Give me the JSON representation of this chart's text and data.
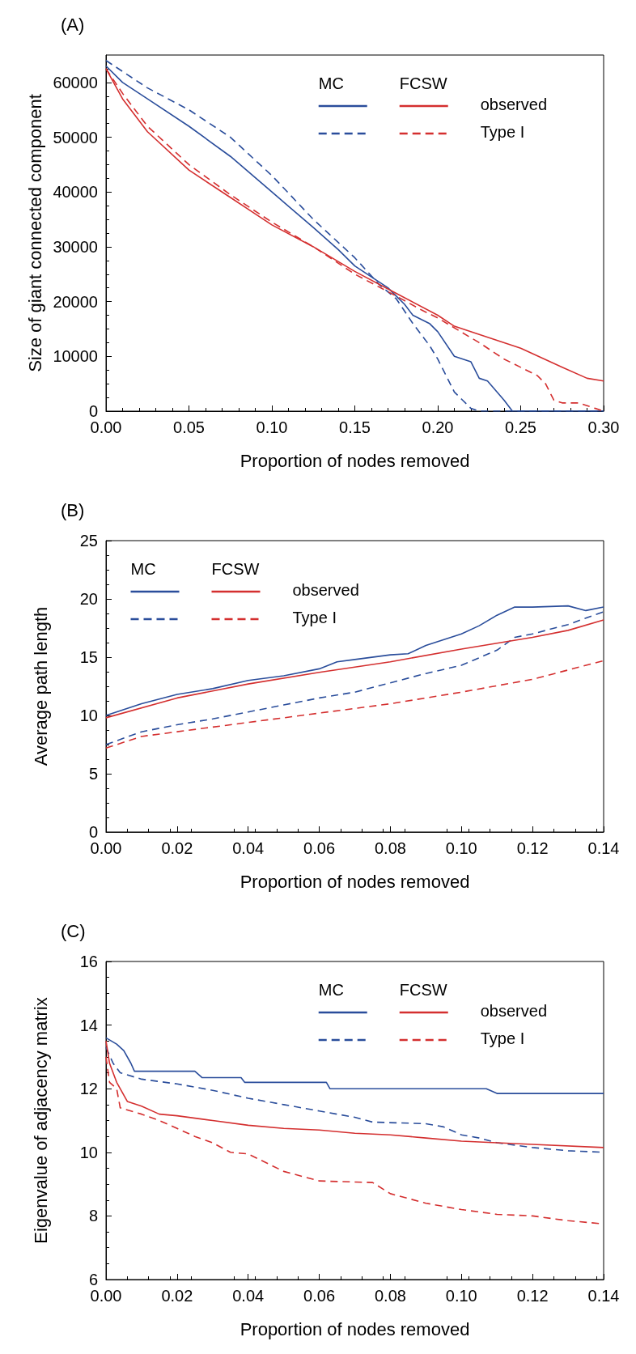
{
  "chart_data": [
    {
      "type": "line",
      "title": "(A)",
      "xlabel": "Proportion of nodes removed",
      "ylabel": "Size of giant connected component",
      "annotations": [
        "MC",
        "FCSW"
      ],
      "legend": "top right",
      "grid": false,
      "marker": "none",
      "xlim": [
        0,
        0.3
      ],
      "xticks": [
        {
          "value": 0,
          "label": "0.00"
        },
        {
          "value": 0.05,
          "label": "0.05"
        },
        {
          "value": 0.1,
          "label": "0.10"
        },
        {
          "value": 0.15,
          "label": "0.15"
        },
        {
          "value": 0.2,
          "label": "0.20"
        },
        {
          "value": 0.25,
          "label": "0.25"
        },
        {
          "value": 0.3,
          "label": "0.30"
        }
      ],
      "ylim": [
        0,
        65000
      ],
      "yticks": [
        0,
        10000,
        20000,
        30000,
        40000,
        50000,
        60000
      ],
      "series": [
        {
          "color": "#2a4d9b",
          "line_style": "solid",
          "x": [
            0,
            0.01,
            0.025,
            0.05,
            0.075,
            0.1,
            0.125,
            0.14,
            0.15,
            0.16,
            0.17,
            0.175,
            0.18,
            0.185,
            0.195,
            0.2,
            0.21,
            0.22,
            0.225,
            0.23,
            0.24,
            0.245,
            0.3
          ],
          "values": [
            63000,
            60000,
            57000,
            52000,
            46500,
            40000,
            33500,
            29500,
            26500,
            24500,
            22500,
            21000,
            19500,
            17500,
            16000,
            14500,
            10000,
            9000,
            6000,
            5500,
            2000,
            0,
            0
          ]
        },
        {
          "color": "#2a4d9b",
          "line_style": "dashed",
          "x": [
            0,
            0.025,
            0.05,
            0.075,
            0.1,
            0.125,
            0.15,
            0.165,
            0.175,
            0.185,
            0.195,
            0.2,
            0.21,
            0.215,
            0.22,
            0.225,
            0.3
          ],
          "values": [
            64000,
            59000,
            55000,
            50000,
            43000,
            35000,
            28000,
            23000,
            20500,
            16000,
            12000,
            9500,
            3500,
            2000,
            500,
            0,
            0
          ]
        },
        {
          "name": "observed",
          "color": "#d42f2f",
          "line_style": "solid",
          "x": [
            0,
            0.01,
            0.025,
            0.05,
            0.075,
            0.1,
            0.125,
            0.15,
            0.175,
            0.2,
            0.21,
            0.225,
            0.25,
            0.275,
            0.29,
            0.3
          ],
          "values": [
            62500,
            57000,
            51000,
            44000,
            39000,
            34000,
            30000,
            25500,
            21500,
            17500,
            15500,
            14000,
            11500,
            8000,
            6000,
            5500
          ]
        },
        {
          "name": "Type I",
          "color": "#d42f2f",
          "line_style": "dashed",
          "x": [
            0,
            0.01,
            0.025,
            0.05,
            0.075,
            0.1,
            0.125,
            0.15,
            0.175,
            0.19,
            0.2,
            0.225,
            0.24,
            0.25,
            0.26,
            0.265,
            0.27,
            0.275,
            0.285,
            0.295,
            0.3
          ],
          "values": [
            62500,
            58000,
            52000,
            45000,
            39500,
            34500,
            30000,
            25000,
            21000,
            18500,
            17000,
            12500,
            9500,
            8000,
            6500,
            5000,
            2000,
            1500,
            1500,
            500,
            0
          ]
        }
      ]
    },
    {
      "type": "line",
      "title": "(B)",
      "xlabel": "Proportion of nodes removed",
      "ylabel": "Average path length",
      "annotations": [
        "MC",
        "FCSW"
      ],
      "legend": "top left",
      "grid": false,
      "marker": "none",
      "xlim": [
        0,
        0.14
      ],
      "xticks": [
        {
          "value": 0,
          "label": "0.00"
        },
        {
          "value": 0.02,
          "label": "0.02"
        },
        {
          "value": 0.04,
          "label": "0.04"
        },
        {
          "value": 0.06,
          "label": "0.06"
        },
        {
          "value": 0.08,
          "label": "0.08"
        },
        {
          "value": 0.1,
          "label": "0.10"
        },
        {
          "value": 0.12,
          "label": "0.12"
        },
        {
          "value": 0.14,
          "label": "0.14"
        }
      ],
      "ylim": [
        0,
        25
      ],
      "yticks": [
        0,
        5,
        10,
        15,
        20,
        25
      ],
      "series": [
        {
          "color": "#2a4d9b",
          "line_style": "solid",
          "x": [
            0,
            0.01,
            0.02,
            0.03,
            0.04,
            0.05,
            0.06,
            0.065,
            0.07,
            0.08,
            0.085,
            0.09,
            0.1,
            0.105,
            0.11,
            0.115,
            0.12,
            0.13,
            0.135,
            0.14
          ],
          "values": [
            10,
            11,
            11.8,
            12.3,
            13,
            13.4,
            14,
            14.6,
            14.8,
            15.2,
            15.3,
            16,
            17,
            17.7,
            18.6,
            19.3,
            19.3,
            19.4,
            19,
            19.3
          ]
        },
        {
          "color": "#2a4d9b",
          "line_style": "dashed",
          "x": [
            0,
            0.01,
            0.02,
            0.03,
            0.04,
            0.05,
            0.06,
            0.07,
            0.08,
            0.09,
            0.1,
            0.11,
            0.115,
            0.12,
            0.13,
            0.14
          ],
          "values": [
            7.5,
            8.6,
            9.2,
            9.7,
            10.3,
            10.9,
            11.5,
            12,
            12.8,
            13.6,
            14.3,
            15.6,
            16.7,
            17,
            17.8,
            18.9
          ]
        },
        {
          "name": "observed",
          "color": "#d42f2f",
          "line_style": "solid",
          "x": [
            0,
            0.02,
            0.04,
            0.06,
            0.08,
            0.1,
            0.12,
            0.13,
            0.14
          ],
          "values": [
            9.8,
            11.5,
            12.7,
            13.7,
            14.6,
            15.7,
            16.7,
            17.3,
            18.2
          ]
        },
        {
          "name": "Type I",
          "color": "#d42f2f",
          "line_style": "dashed",
          "x": [
            0,
            0.01,
            0.02,
            0.04,
            0.06,
            0.08,
            0.1,
            0.12,
            0.14
          ],
          "values": [
            7.2,
            8.2,
            8.6,
            9.4,
            10.2,
            11,
            12,
            13.1,
            14.7
          ]
        }
      ]
    },
    {
      "type": "line",
      "title": "(C)",
      "xlabel": "Proportion of nodes removed",
      "ylabel": "Eigenvalue of adjacency matrix",
      "annotations": [
        "MC",
        "FCSW"
      ],
      "legend": "top right",
      "grid": false,
      "marker": "none",
      "xlim": [
        0,
        0.14
      ],
      "xticks": [
        {
          "value": 0,
          "label": "0.00"
        },
        {
          "value": 0.02,
          "label": "0.02"
        },
        {
          "value": 0.04,
          "label": "0.04"
        },
        {
          "value": 0.06,
          "label": "0.06"
        },
        {
          "value": 0.08,
          "label": "0.08"
        },
        {
          "value": 0.1,
          "label": "0.10"
        },
        {
          "value": 0.12,
          "label": "0.12"
        },
        {
          "value": 0.14,
          "label": "0.14"
        }
      ],
      "ylim": [
        6,
        16
      ],
      "yticks": [
        6,
        8,
        10,
        12,
        14,
        16
      ],
      "series": [
        {
          "color": "#2a4d9b",
          "line_style": "solid",
          "x": [
            0,
            0.003,
            0.005,
            0.007,
            0.008,
            0.025,
            0.027,
            0.038,
            0.039,
            0.062,
            0.063,
            0.107,
            0.11,
            0.14
          ],
          "values": [
            13.6,
            13.4,
            13.2,
            12.8,
            12.55,
            12.55,
            12.35,
            12.35,
            12.2,
            12.2,
            12,
            12,
            11.85,
            11.85
          ]
        },
        {
          "color": "#2a4d9b",
          "line_style": "dashed",
          "x": [
            0,
            0.002,
            0.004,
            0.01,
            0.02,
            0.03,
            0.04,
            0.05,
            0.06,
            0.07,
            0.075,
            0.09,
            0.095,
            0.1,
            0.105,
            0.11,
            0.12,
            0.13,
            0.14
          ],
          "values": [
            13.3,
            12.8,
            12.5,
            12.3,
            12.15,
            11.95,
            11.7,
            11.5,
            11.3,
            11.1,
            10.95,
            10.9,
            10.8,
            10.55,
            10.45,
            10.3,
            10.15,
            10.05,
            10
          ]
        },
        {
          "name": "observed",
          "color": "#d42f2f",
          "line_style": "solid",
          "x": [
            0,
            0.001,
            0.003,
            0.006,
            0.01,
            0.015,
            0.02,
            0.03,
            0.04,
            0.05,
            0.06,
            0.07,
            0.08,
            0.09,
            0.1,
            0.11,
            0.12,
            0.14
          ],
          "values": [
            13.5,
            12.8,
            12.2,
            11.6,
            11.45,
            11.2,
            11.15,
            11,
            10.85,
            10.75,
            10.7,
            10.6,
            10.55,
            10.45,
            10.35,
            10.3,
            10.25,
            10.15
          ]
        },
        {
          "name": "Type I",
          "color": "#d42f2f",
          "line_style": "dashed",
          "x": [
            0,
            0.001,
            0.003,
            0.004,
            0.01,
            0.015,
            0.02,
            0.025,
            0.03,
            0.035,
            0.04,
            0.05,
            0.06,
            0.075,
            0.08,
            0.09,
            0.1,
            0.11,
            0.12,
            0.13,
            0.14
          ],
          "values": [
            13,
            12.2,
            12,
            11.4,
            11.2,
            11,
            10.75,
            10.5,
            10.3,
            10,
            9.95,
            9.4,
            9.1,
            9.05,
            8.7,
            8.4,
            8.2,
            8.05,
            8,
            7.85,
            7.75
          ]
        }
      ]
    }
  ]
}
